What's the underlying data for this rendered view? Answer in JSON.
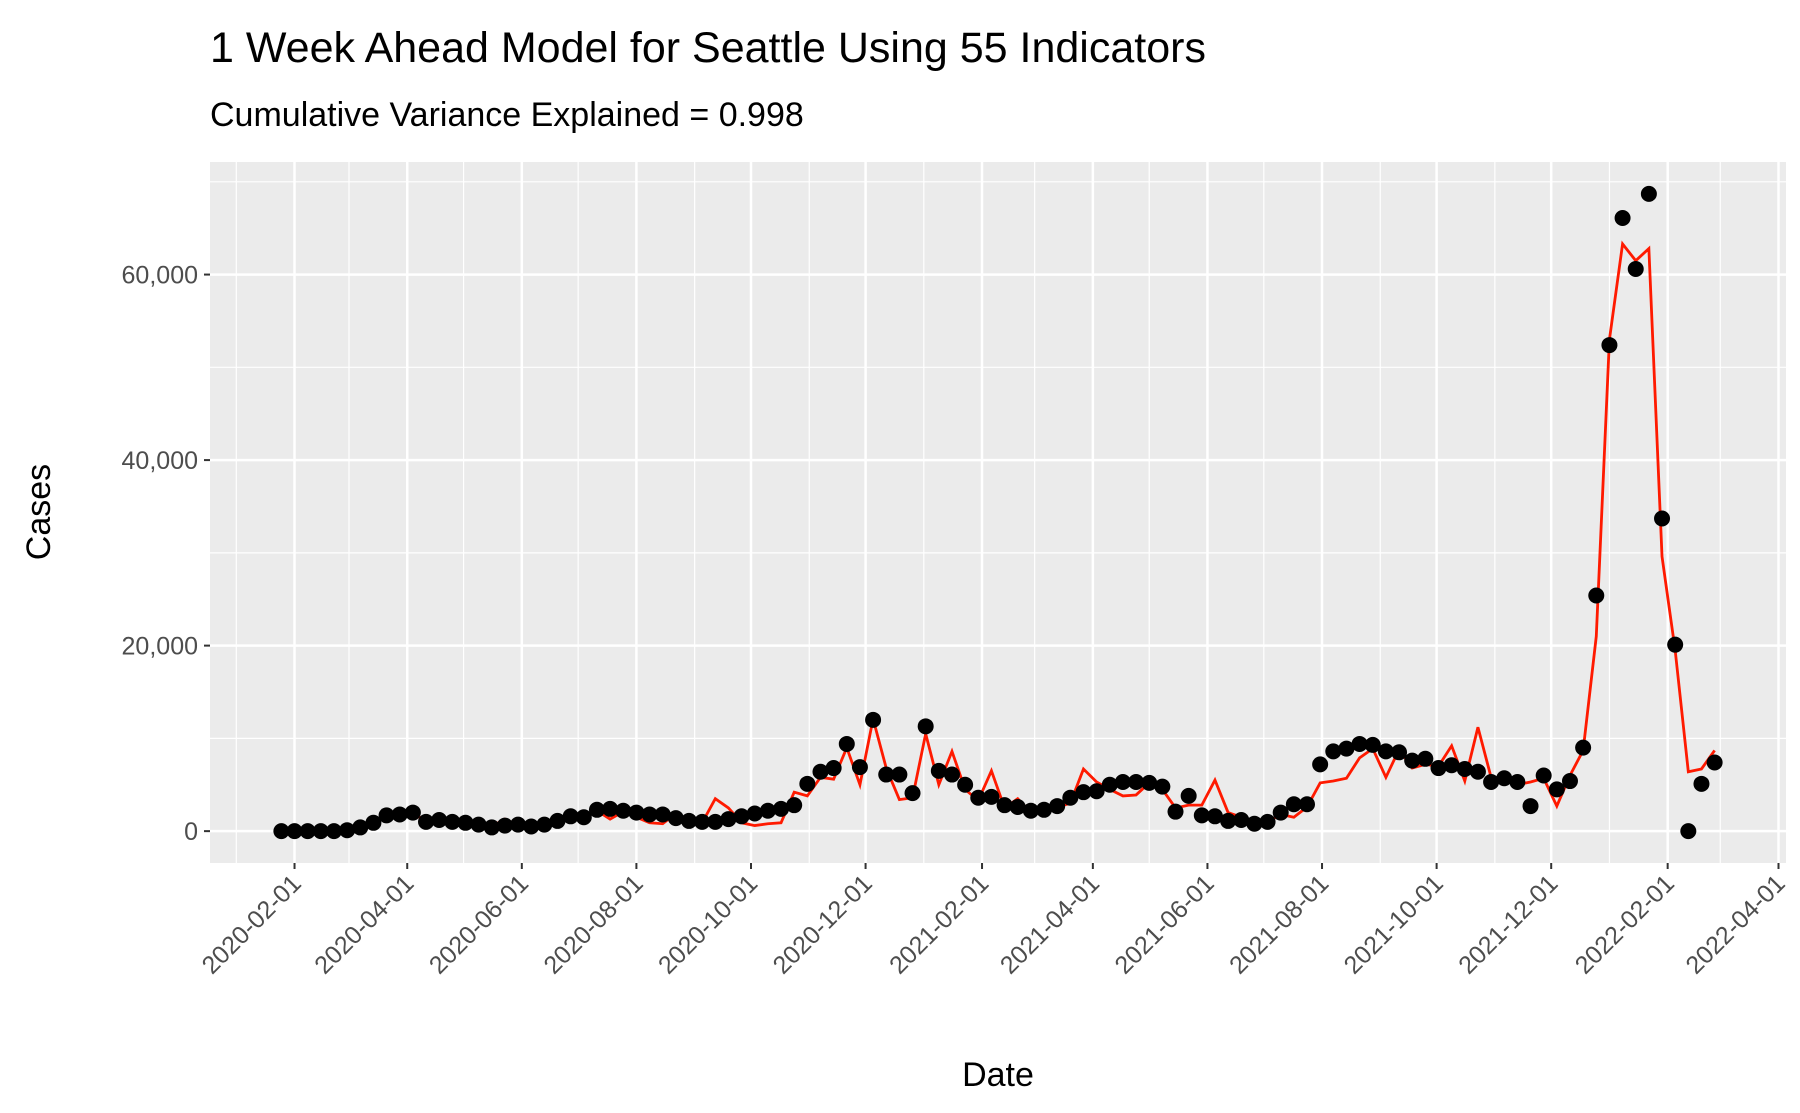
{
  "chart_data": {
    "type": "line",
    "title": "1 Week Ahead Model for Seattle Using 55 Indicators",
    "subtitle": "Cumulative Variance Explained = 0.998",
    "x_label": "Date",
    "y_label": "Cases",
    "x": [
      "2020-01-25",
      "2020-02-01",
      "2020-02-08",
      "2020-02-15",
      "2020-02-22",
      "2020-02-29",
      "2020-03-07",
      "2020-03-14",
      "2020-03-21",
      "2020-03-28",
      "2020-04-04",
      "2020-04-11",
      "2020-04-18",
      "2020-04-25",
      "2020-05-02",
      "2020-05-09",
      "2020-05-16",
      "2020-05-23",
      "2020-05-30",
      "2020-06-06",
      "2020-06-13",
      "2020-06-20",
      "2020-06-27",
      "2020-07-04",
      "2020-07-11",
      "2020-07-18",
      "2020-07-25",
      "2020-08-01",
      "2020-08-08",
      "2020-08-15",
      "2020-08-22",
      "2020-08-29",
      "2020-09-05",
      "2020-09-12",
      "2020-09-19",
      "2020-09-26",
      "2020-10-03",
      "2020-10-10",
      "2020-10-17",
      "2020-10-24",
      "2020-10-31",
      "2020-11-07",
      "2020-11-14",
      "2020-11-21",
      "2020-11-28",
      "2020-12-05",
      "2020-12-12",
      "2020-12-19",
      "2020-12-26",
      "2021-01-02",
      "2021-01-09",
      "2021-01-16",
      "2021-01-23",
      "2021-01-30",
      "2021-02-06",
      "2021-02-13",
      "2021-02-20",
      "2021-02-27",
      "2021-03-06",
      "2021-03-13",
      "2021-03-20",
      "2021-03-27",
      "2021-04-03",
      "2021-04-10",
      "2021-04-17",
      "2021-04-24",
      "2021-05-01",
      "2021-05-08",
      "2021-05-15",
      "2021-05-22",
      "2021-05-29",
      "2021-06-05",
      "2021-06-12",
      "2021-06-19",
      "2021-06-26",
      "2021-07-03",
      "2021-07-10",
      "2021-07-17",
      "2021-07-24",
      "2021-07-31",
      "2021-08-07",
      "2021-08-14",
      "2021-08-21",
      "2021-08-28",
      "2021-09-04",
      "2021-09-11",
      "2021-09-18",
      "2021-09-25",
      "2021-10-02",
      "2021-10-09",
      "2021-10-16",
      "2021-10-23",
      "2021-10-30",
      "2021-11-06",
      "2021-11-13",
      "2021-11-20",
      "2021-11-27",
      "2021-12-04",
      "2021-12-11",
      "2021-12-18",
      "2021-12-25",
      "2022-01-01",
      "2022-01-08",
      "2022-01-15",
      "2022-01-22",
      "2022-01-29",
      "2022-02-05",
      "2022-02-12",
      "2022-02-19",
      "2022-02-26"
    ],
    "series": [
      {
        "mark": "line",
        "color": "#ff1a00",
        "values": [
          0,
          0,
          0,
          0,
          100,
          200,
          500,
          1000,
          1500,
          1700,
          1800,
          1200,
          1100,
          900,
          800,
          600,
          500,
          1300,
          600,
          500,
          600,
          1000,
          1500,
          1400,
          2200,
          1300,
          2100,
          1500,
          900,
          800,
          1900,
          1000,
          900,
          3500,
          2500,
          900,
          600,
          800,
          900,
          4200,
          3800,
          5800,
          5600,
          9000,
          5000,
          12100,
          6800,
          3400,
          3600,
          10500,
          5000,
          8600,
          4500,
          3300,
          6500,
          2500,
          3500,
          2000,
          2500,
          2600,
          3000,
          6700,
          5300,
          4500,
          3800,
          3900,
          5200,
          4500,
          2500,
          2800,
          2800,
          5500,
          2000,
          1500,
          800,
          1000,
          1800,
          1500,
          2600,
          5200,
          5400,
          5700,
          7900,
          8900,
          5800,
          8800,
          6800,
          7200,
          7000,
          9200,
          5400,
          11200,
          5800,
          5500,
          5000,
          5300,
          5700,
          2700,
          6000,
          8700,
          21000,
          53000,
          63300,
          61500,
          62800,
          29600,
          19500,
          6400,
          6700,
          8700
        ]
      },
      {
        "mark": "point",
        "color": "#000000",
        "values": [
          0,
          0,
          0,
          0,
          0,
          100,
          400,
          900,
          1700,
          1800,
          2000,
          1000,
          1200,
          1000,
          900,
          700,
          400,
          600,
          700,
          500,
          700,
          1100,
          1600,
          1500,
          2300,
          2400,
          2200,
          2000,
          1800,
          1800,
          1400,
          1100,
          1000,
          1000,
          1300,
          1600,
          1900,
          2200,
          2400,
          2800,
          5100,
          6400,
          6800,
          9400,
          6900,
          12000,
          6100,
          6100,
          4100,
          11300,
          6500,
          6100,
          5000,
          3600,
          3700,
          2800,
          2600,
          2200,
          2300,
          2700,
          3600,
          4200,
          4300,
          5000,
          5300,
          5300,
          5200,
          4800,
          2100,
          3800,
          1700,
          1600,
          1100,
          1200,
          800,
          1000,
          2000,
          2900,
          2900,
          7200,
          8600,
          8900,
          9400,
          9300,
          8600,
          8500,
          7600,
          7800,
          6800,
          7100,
          6700,
          6400,
          5300,
          5700,
          5300,
          2700,
          6000,
          4500,
          5400,
          9000,
          25400,
          52400,
          66100,
          60600,
          68700,
          33700,
          20100,
          0,
          5100,
          7400
        ]
      }
    ],
    "xlim": [
      "2019-12-18",
      "2022-04-05"
    ],
    "xticks": [
      "2020-02-01",
      "2020-04-01",
      "2020-06-01",
      "2020-08-01",
      "2020-10-01",
      "2020-12-01",
      "2021-02-01",
      "2021-04-01",
      "2021-06-01",
      "2021-08-01",
      "2021-10-01",
      "2021-12-01",
      "2022-02-01",
      "2022-04-01"
    ],
    "x_minor_ticks": [
      "2020-01-01",
      "2020-03-01",
      "2020-05-01",
      "2020-07-01",
      "2020-09-01",
      "2020-11-01",
      "2021-01-01",
      "2021-03-01",
      "2021-05-01",
      "2021-07-01",
      "2021-09-01",
      "2021-11-01",
      "2022-01-01",
      "2022-03-01"
    ],
    "ylim": [
      -3435,
      72135
    ],
    "yticks": [
      0,
      {
        "value": 20000,
        "label": "20,000"
      },
      {
        "value": 40000,
        "label": "40,000"
      },
      {
        "value": 60000,
        "label": "60,000"
      }
    ],
    "y_minor_ticks": [
      10000,
      30000,
      50000,
      70000
    ],
    "grid": true
  }
}
